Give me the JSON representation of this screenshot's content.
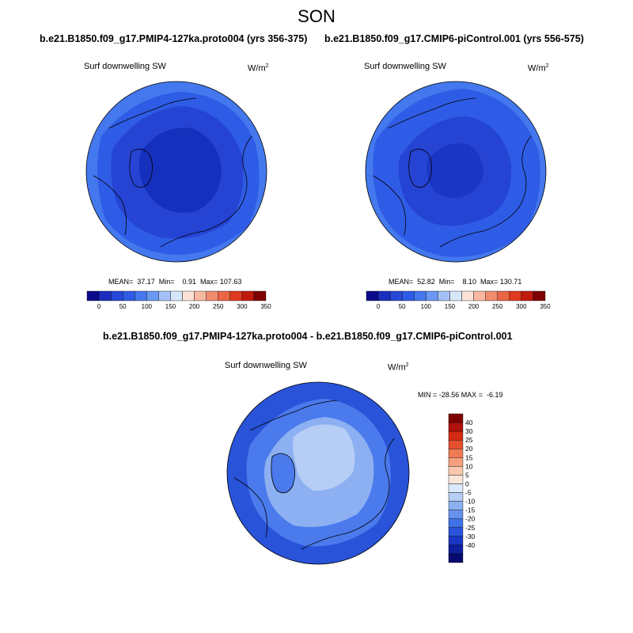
{
  "season": "SON",
  "panels": [
    {
      "title": "b.e21.B1850.f09_g17.PMIP4-127ka.proto004 (yrs 356-375)",
      "variable": "Surf downwelling SW",
      "units": "W/m",
      "units_sup": "2",
      "stats": "MEAN=  37.17  Min=    0.91  Max= 107.63",
      "colorbar": {
        "colors": [
          "#0c0c8c",
          "#1a2fbf",
          "#2548d6",
          "#2f5ce6",
          "#4478ee",
          "#6a98f2",
          "#a4c1f7",
          "#d6e6fb",
          "#fbe2d6",
          "#f8b8a2",
          "#f08c6e",
          "#ea6545",
          "#e03a20",
          "#c01a0c",
          "#7f0000"
        ],
        "labels": [
          "0",
          "50",
          "100",
          "150",
          "200",
          "250",
          "300",
          "350"
        ]
      }
    },
    {
      "title": "b.e21.B1850.f09_g17.CMIP6-piControl.001 (yrs 556-575)",
      "variable": "Surf downwelling SW",
      "units": "W/m",
      "units_sup": "2",
      "stats": "MEAN=  52.82  Min=    8.10  Max= 130.71",
      "colorbar": {
        "colors": [
          "#0c0c8c",
          "#1a2fbf",
          "#2548d6",
          "#2f5ce6",
          "#4478ee",
          "#6a98f2",
          "#a4c1f7",
          "#d6e6fb",
          "#fbe2d6",
          "#f8b8a2",
          "#f08c6e",
          "#ea6545",
          "#e03a20",
          "#c01a0c",
          "#7f0000"
        ],
        "labels": [
          "0",
          "50",
          "100",
          "150",
          "200",
          "250",
          "300",
          "350"
        ]
      }
    },
    {
      "title": "b.e21.B1850.f09_g17.PMIP4-127ka.proto004 - b.e21.B1850.f09_g17.CMIP6-piControl.001",
      "variable": "Surf downwelling SW",
      "units": "W/m",
      "units_sup": "2",
      "stats": "MIN = -28.56 MAX =  -6.19",
      "colorbar": {
        "colors": [
          "#7f0000",
          "#b0100c",
          "#d42a14",
          "#e5502e",
          "#f07a52",
          "#f6a07e",
          "#f9c7ae",
          "#fbe6da",
          "#dbe9fb",
          "#b6cdf6",
          "#8cb0f1",
          "#6692ee",
          "#3f72e8",
          "#2953d8",
          "#1a36c4",
          "#0d1e9c",
          "#060a70"
        ],
        "labels": [
          "40",
          "30",
          "25",
          "20",
          "15",
          "10",
          "5",
          "0",
          "-5",
          "-10",
          "-15",
          "-20",
          "-25",
          "-30",
          "-40"
        ]
      }
    }
  ],
  "map_colors": {
    "level_deep": "#1530bc",
    "level_mid": "#2544d4",
    "level_outer": "#2f5ce6",
    "level_rim": "#4478ee",
    "diff_outer": "#2953d8",
    "diff_mid": "#4a7aec",
    "diff_light": "#8cb0f1",
    "diff_pale": "#b6cdf6",
    "coast": "#000000"
  }
}
